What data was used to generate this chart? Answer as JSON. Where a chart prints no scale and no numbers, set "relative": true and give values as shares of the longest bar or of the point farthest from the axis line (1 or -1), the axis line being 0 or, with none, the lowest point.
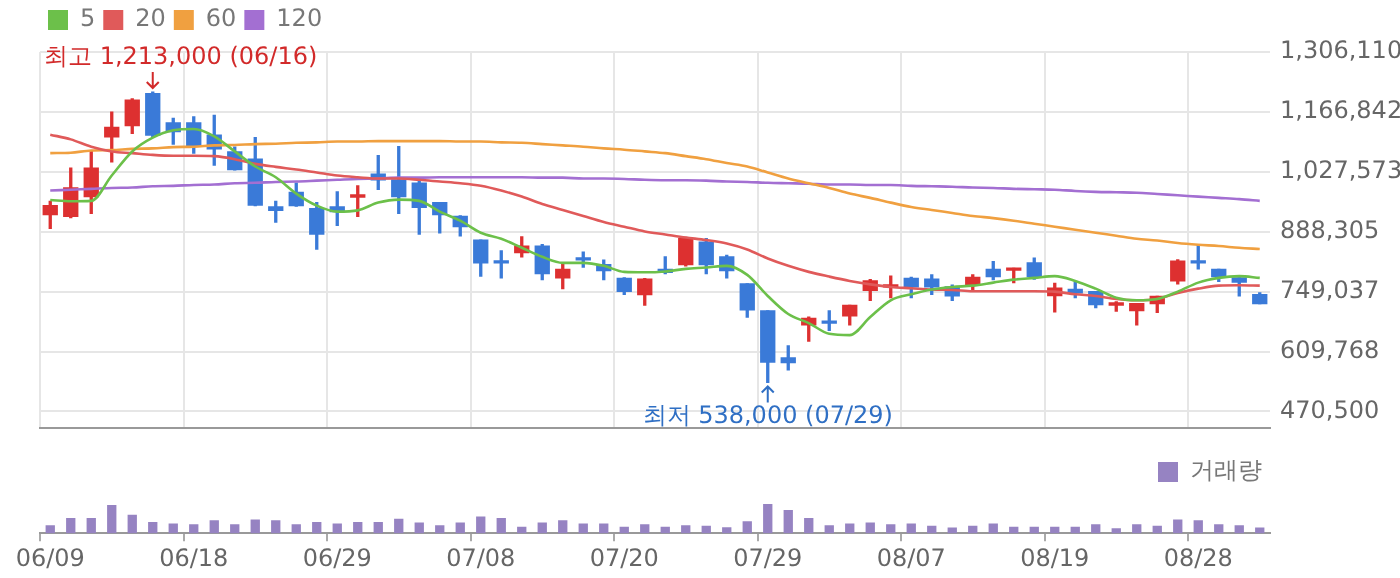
{
  "chart_data": [
    {
      "type": "candlestick",
      "categories": [
        null,
        null,
        null,
        null,
        null,
        null,
        null,
        null,
        null,
        null,
        null,
        null,
        null,
        null,
        null,
        null,
        null,
        null,
        null,
        null,
        null,
        null,
        null,
        null,
        null,
        null,
        null,
        null,
        null,
        null,
        null,
        null,
        null,
        null,
        null,
        null,
        null,
        null,
        null,
        null,
        null,
        null,
        null,
        null,
        null,
        null,
        null,
        null,
        null,
        null,
        null,
        null,
        null,
        null,
        null,
        null,
        null,
        null,
        null,
        null
      ],
      "ohlc": [
        [
          928000,
          959000,
          896000,
          949000
        ],
        [
          924000,
          1036000,
          921000,
          990000
        ],
        [
          970000,
          1075000,
          931000,
          1036000
        ],
        [
          1109000,
          1166000,
          1051000,
          1131000
        ],
        [
          1135000,
          1197000,
          1117000,
          1194000
        ],
        [
          1209000,
          1213000,
          1110000,
          1113000
        ],
        [
          1141000,
          1152000,
          1092000,
          1121000
        ],
        [
          1141000,
          1155000,
          1071000,
          1088000
        ],
        [
          1113000,
          1159000,
          1043000,
          1081000
        ],
        [
          1074000,
          1085000,
          1032000,
          1033000
        ],
        [
          1057000,
          1107000,
          949000,
          950000
        ],
        [
          946000,
          959000,
          911000,
          938000
        ],
        [
          980000,
          1001000,
          948000,
          949000
        ],
        [
          942000,
          956000,
          848000,
          883000
        ],
        [
          946000,
          981000,
          903000,
          935000
        ],
        [
          969000,
          995000,
          924000,
          972000
        ],
        [
          1022000,
          1065000,
          987000,
          1009000
        ],
        [
          1009000,
          1086000,
          931000,
          970000
        ],
        [
          1001000,
          1008000,
          883000,
          945000
        ],
        [
          956000,
          956000,
          886000,
          928000
        ],
        [
          924000,
          925000,
          879000,
          900000
        ],
        [
          869000,
          869000,
          785000,
          816000
        ],
        [
          820000,
          844000,
          781000,
          816000
        ],
        [
          840000,
          876000,
          830000,
          855000
        ],
        [
          855000,
          858000,
          777000,
          791000
        ],
        [
          781000,
          816000,
          756000,
          801000
        ],
        [
          827000,
          841000,
          806000,
          823000
        ],
        [
          812000,
          822000,
          777000,
          798000
        ],
        [
          780000,
          781000,
          743000,
          750000
        ],
        [
          742000,
          779000,
          718000,
          778000
        ],
        [
          801000,
          830000,
          791000,
          794000
        ],
        [
          812000,
          875000,
          809000,
          872000
        ],
        [
          864000,
          872000,
          791000,
          812000
        ],
        [
          830000,
          833000,
          781000,
          798000
        ],
        [
          767000,
          767000,
          690000,
          707000
        ],
        [
          704000,
          704000,
          538000,
          585000
        ],
        [
          595000,
          623000,
          567000,
          584000
        ],
        [
          672000,
          690000,
          634000,
          687000
        ],
        [
          680000,
          704000,
          659000,
          676000
        ],
        [
          693000,
          717000,
          672000,
          717000
        ],
        [
          752000,
          777000,
          729000,
          774000
        ],
        [
          760000,
          785000,
          735000,
          764000
        ],
        [
          780000,
          782000,
          735000,
          760000
        ],
        [
          778000,
          788000,
          743000,
          760000
        ],
        [
          760000,
          764000,
          729000,
          739000
        ],
        [
          764000,
          788000,
          750000,
          782000
        ],
        [
          801000,
          819000,
          777000,
          784000
        ],
        [
          799000,
          803000,
          770000,
          803000
        ],
        [
          816000,
          827000,
          778000,
          784000
        ],
        [
          740000,
          768000,
          702000,
          757000
        ],
        [
          754000,
          771000,
          735000,
          746000
        ],
        [
          749000,
          749000,
          712000,
          719000
        ],
        [
          718000,
          725000,
          704000,
          722000
        ],
        [
          705000,
          721000,
          672000,
          721000
        ],
        [
          721000,
          738000,
          701000,
          738000
        ],
        [
          774000,
          823000,
          767000,
          820000
        ],
        [
          820000,
          858000,
          802000,
          816000
        ],
        [
          801000,
          801000,
          773000,
          784000
        ],
        [
          781000,
          781000,
          739000,
          771000
        ],
        [
          742000,
          746000,
          721000,
          721000
        ]
      ],
      "colors": [
        "#dd3030",
        "#dd3030",
        "#dd3030",
        "#dd3030",
        "#dd3030",
        "#3a7ad8",
        "#3a7ad8",
        "#3a7ad8",
        "#3a7ad8",
        "#3a7ad8",
        "#3a7ad8",
        "#3a7ad8",
        "#3a7ad8",
        "#3a7ad8",
        "#3a7ad8",
        "#dd3030",
        "#3a7ad8",
        "#3a7ad8",
        "#3a7ad8",
        "#3a7ad8",
        "#3a7ad8",
        "#3a7ad8",
        "#3a7ad8",
        "#dd3030",
        "#3a7ad8",
        "#dd3030",
        "#3a7ad8",
        "#3a7ad8",
        "#3a7ad8",
        "#dd3030",
        "#3a7ad8",
        "#dd3030",
        "#3a7ad8",
        "#3a7ad8",
        "#3a7ad8",
        "#3a7ad8",
        "#3a7ad8",
        "#dd3030",
        "#3a7ad8",
        "#dd3030",
        "#dd3030",
        "#dd3030",
        "#3a7ad8",
        "#3a7ad8",
        "#3a7ad8",
        "#dd3030",
        "#3a7ad8",
        "#dd3030",
        "#3a7ad8",
        "#dd3030",
        "#3a7ad8",
        "#3a7ad8",
        "#dd3030",
        "#dd3030",
        "#dd3030",
        "#dd3030",
        "#3a7ad8",
        "#3a7ad8",
        "#3a7ad8",
        "#3a7ad8"
      ],
      "series": [
        {
          "type": "line",
          "name": "5",
          "color": "#6cc04a",
          "values": [
            962000,
            959000,
            960000,
            1019000,
            1075000,
            1107000,
            1124000,
            1127000,
            1110000,
            1075000,
            1040000,
            1015000,
            977000,
            949000,
            935000,
            938000,
            956000,
            963000,
            960000,
            935000,
            914000,
            886000,
            872000,
            851000,
            830000,
            816000,
            816000,
            809000,
            795000,
            794000,
            796000,
            802000,
            805000,
            809000,
            788000,
            739000,
            697000,
            676000,
            651000,
            648000,
            690000,
            729000,
            743000,
            754000,
            760000,
            763000,
            770000,
            777000,
            781000,
            785000,
            774000,
            756000,
            735000,
            729000,
            732000,
            749000,
            770000,
            781000,
            785000,
            781000
          ]
        },
        {
          "type": "line",
          "name": "20",
          "color": "#e05a5a",
          "values": [
            1114000,
            1103000,
            1086000,
            1075000,
            1071000,
            1067000,
            1065000,
            1065000,
            1064000,
            1057000,
            1046000,
            1039000,
            1033000,
            1026000,
            1019000,
            1015000,
            1012000,
            1012000,
            1009000,
            1005000,
            1001000,
            995000,
            984000,
            970000,
            953000,
            939000,
            925000,
            911000,
            900000,
            889000,
            882000,
            875000,
            869000,
            861000,
            847000,
            826000,
            809000,
            795000,
            784000,
            774000,
            766000,
            760000,
            757000,
            754000,
            753000,
            750000,
            750000,
            750000,
            750000,
            749000,
            743000,
            739000,
            732000,
            729000,
            732000,
            746000,
            756000,
            763000,
            764000,
            763000
          ]
        },
        {
          "type": "line",
          "name": "60",
          "color": "#f0a040",
          "values": [
            1071000,
            1072000,
            1077000,
            1078000,
            1081000,
            1082000,
            1085000,
            1086000,
            1089000,
            1090000,
            1092000,
            1093000,
            1095000,
            1096000,
            1098000,
            1098000,
            1099000,
            1099000,
            1099000,
            1099000,
            1098000,
            1098000,
            1096000,
            1095000,
            1092000,
            1089000,
            1086000,
            1082000,
            1079000,
            1075000,
            1071000,
            1064000,
            1057000,
            1048000,
            1040000,
            1026000,
            1012000,
            1001000,
            990000,
            977000,
            967000,
            956000,
            946000,
            939000,
            932000,
            925000,
            920000,
            914000,
            907000,
            900000,
            893000,
            886000,
            879000,
            872000,
            868000,
            862000,
            858000,
            855000,
            851000,
            848000
          ]
        },
        {
          "type": "line",
          "name": "120",
          "color": "#a36fd2",
          "values": [
            984000,
            986000,
            988000,
            990000,
            991000,
            994000,
            995000,
            997000,
            998000,
            1001000,
            1002000,
            1004000,
            1005000,
            1007000,
            1009000,
            1011000,
            1012000,
            1014000,
            1014000,
            1015000,
            1015000,
            1015000,
            1015000,
            1015000,
            1014000,
            1014000,
            1012000,
            1012000,
            1011000,
            1009000,
            1008000,
            1008000,
            1007000,
            1005000,
            1004000,
            1002000,
            1001000,
            1000000,
            998000,
            998000,
            997000,
            997000,
            995000,
            994000,
            993000,
            991000,
            990000,
            988000,
            987000,
            986000,
            983000,
            981000,
            980000,
            979000,
            976000,
            973000,
            970000,
            967000,
            964000,
            960000
          ]
        }
      ],
      "ylim": [
        433000,
        1306110
      ],
      "yticks": [
        {
          "value": 470500,
          "label": "470,500"
        },
        {
          "value": 609768,
          "label": "609,768"
        },
        {
          "value": 749037,
          "label": "749,037"
        },
        {
          "value": 888305,
          "label": "888,305"
        },
        {
          "value": 1027573,
          "label": "1,027,573"
        },
        {
          "value": 1166842,
          "label": "1,166,842"
        },
        {
          "value": 1306110,
          "label": "1,306,110"
        }
      ],
      "grid": true,
      "legend": "top left",
      "tick_labels": "y",
      "annotations": [
        "최고 1,213,000 (06/16)",
        "최저 538,000 (07/29)"
      ]
    },
    {
      "type": "bar",
      "categories": [
        "06/09",
        null,
        null,
        null,
        null,
        null,
        null,
        "06/18",
        null,
        null,
        null,
        null,
        null,
        null,
        "06/29",
        null,
        null,
        null,
        null,
        null,
        null,
        "07/08",
        null,
        null,
        null,
        null,
        null,
        null,
        "07/20",
        null,
        null,
        null,
        null,
        null,
        null,
        "07/29",
        null,
        null,
        null,
        null,
        null,
        null,
        "08/07",
        null,
        null,
        null,
        null,
        null,
        null,
        "08/19",
        null,
        null,
        null,
        null,
        null,
        null,
        "08/28",
        null,
        null,
        null
      ],
      "series": [
        {
          "name": "거래량",
          "color": "#9683c2",
          "values": [
            0.25,
            0.5,
            0.5,
            0.94,
            0.61,
            0.36,
            0.31,
            0.28,
            0.42,
            0.28,
            0.45,
            0.42,
            0.28,
            0.36,
            0.31,
            0.36,
            0.36,
            0.47,
            0.34,
            0.25,
            0.34,
            0.55,
            0.5,
            0.2,
            0.34,
            0.42,
            0.31,
            0.31,
            0.2,
            0.28,
            0.2,
            0.25,
            0.23,
            0.18,
            0.39,
            1,
            0.77,
            0.5,
            0.25,
            0.31,
            0.34,
            0.28,
            0.31,
            0.23,
            0.17,
            0.23,
            0.31,
            0.2,
            0.2,
            0.2,
            0.2,
            0.28,
            0.15,
            0.28,
            0.23,
            0.45,
            0.42,
            0.28,
            0.25,
            0.17
          ]
        }
      ],
      "relative": true,
      "legend": "top right",
      "tick_labels": "x"
    }
  ]
}
